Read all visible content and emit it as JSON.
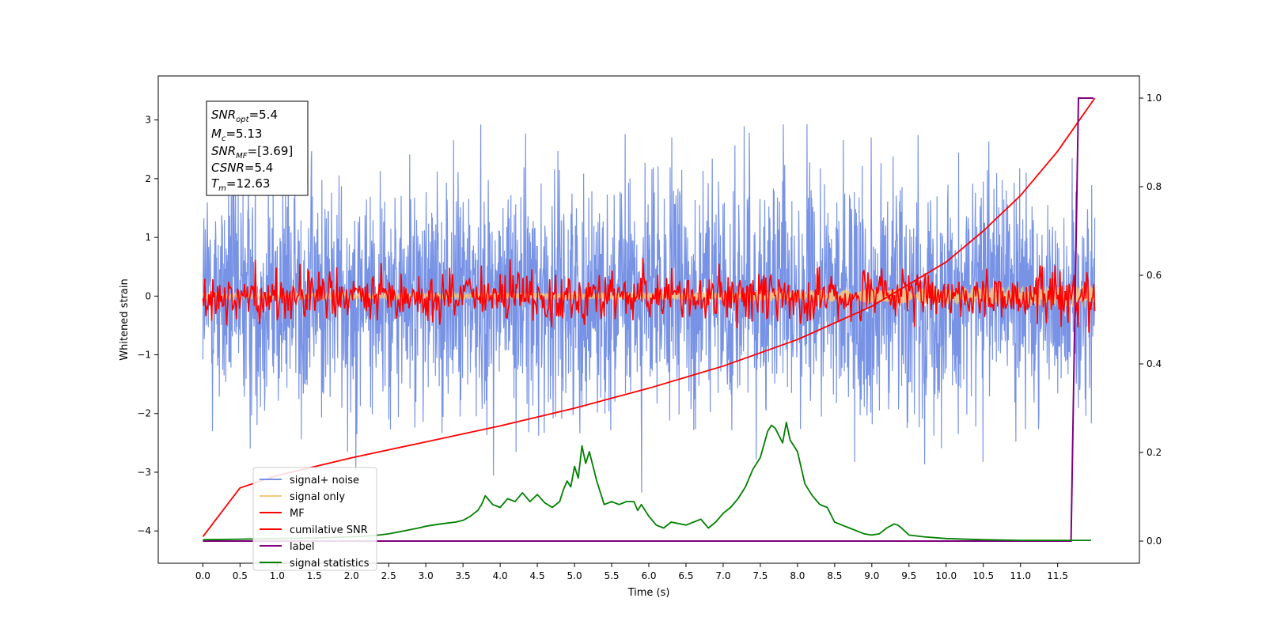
{
  "chart_data": {
    "type": "line",
    "title": "",
    "xlabel": "Time (s)",
    "ylabel": "Whitened strain",
    "y2label": "",
    "xlim": [
      -0.6,
      12.6
    ],
    "ylim": [
      -4.55,
      3.75
    ],
    "y2lim": [
      -0.05,
      1.05
    ],
    "x_ticks": [
      "0.0",
      "0.5",
      "1.0",
      "1.5",
      "2.0",
      "2.5",
      "3.0",
      "3.5",
      "4.0",
      "4.5",
      "5.0",
      "5.5",
      "6.0",
      "6.5",
      "7.0",
      "7.5",
      "8.0",
      "8.5",
      "9.0",
      "9.5",
      "10.0",
      "10.5",
      "11.0",
      "11.5"
    ],
    "y_ticks": [
      "3",
      "2",
      "1",
      "0",
      "−1",
      "−2",
      "−3",
      "−4"
    ],
    "y2_ticks": [
      "1.0",
      "0.8",
      "0.6",
      "0.4",
      "0.2",
      "0.0"
    ],
    "grid": false,
    "legend_position": "lower-left",
    "infobox": {
      "snr_opt": {
        "sym": "SNR",
        "sub": "opt",
        "val": "=5.4"
      },
      "mc": {
        "sym": "M",
        "sub": "c",
        "val": "=5.13"
      },
      "snr_mf": {
        "sym": "SNR",
        "sub": "MF",
        "val": "=[3.69]"
      },
      "csnr": {
        "sym": "CSNR",
        "sub": "",
        "val": "=5.4"
      },
      "tm": {
        "sym": "T",
        "sub": "m",
        "val": "=12.63"
      }
    },
    "series": [
      {
        "name": "signal+ noise",
        "color": "#7893e6",
        "axis": "left",
        "kind": "noise",
        "sigma": 1.0,
        "peak": 3.35,
        "x_range": [
          0.0,
          12.0
        ]
      },
      {
        "name": "signal only",
        "color": "#f5c77a",
        "axis": "left",
        "kind": "chirp",
        "x_range": [
          0.0,
          12.0
        ],
        "amplitude_start": 0.05,
        "amplitude_end": 0.2
      },
      {
        "name": "MF",
        "color": "#ff0000",
        "axis": "left",
        "kind": "noise",
        "sigma": 0.22,
        "peak": 1.0,
        "x_range": [
          0.0,
          12.0
        ]
      },
      {
        "name": "cumilative SNR",
        "color": "#ff0000",
        "axis": "right",
        "x": [
          0.0,
          0.5,
          1.0,
          2.0,
          3.0,
          4.0,
          5.0,
          6.0,
          7.0,
          8.0,
          9.0,
          10.0,
          10.5,
          11.0,
          11.5,
          12.0
        ],
        "y": [
          0.01,
          0.12,
          0.148,
          0.188,
          0.224,
          0.26,
          0.3,
          0.345,
          0.395,
          0.455,
          0.53,
          0.63,
          0.7,
          0.78,
          0.88,
          1.0
        ]
      },
      {
        "name": "label",
        "color": "#800080",
        "axis": "right",
        "x": [
          0.0,
          11.68,
          11.78,
          11.98
        ],
        "y": [
          0.0,
          0.0,
          1.0,
          1.0
        ]
      },
      {
        "name": "signal statistics",
        "color": "#008000",
        "axis": "left",
        "x": [
          0.0,
          0.5,
          1.0,
          1.5,
          2.0,
          2.3,
          2.5,
          2.7,
          2.9,
          3.0,
          3.2,
          3.4,
          3.5,
          3.6,
          3.7,
          3.75,
          3.8,
          3.9,
          4.0,
          4.1,
          4.2,
          4.3,
          4.4,
          4.5,
          4.6,
          4.7,
          4.8,
          4.85,
          4.9,
          4.95,
          5.0,
          5.05,
          5.1,
          5.15,
          5.2,
          5.25,
          5.3,
          5.4,
          5.5,
          5.6,
          5.7,
          5.8,
          5.85,
          5.9,
          6.0,
          6.1,
          6.2,
          6.3,
          6.5,
          6.7,
          6.8,
          6.9,
          7.0,
          7.1,
          7.2,
          7.3,
          7.4,
          7.5,
          7.6,
          7.65,
          7.7,
          7.8,
          7.85,
          7.9,
          8.0,
          8.1,
          8.2,
          8.3,
          8.4,
          8.5,
          8.6,
          8.7,
          8.8,
          8.9,
          9.0,
          9.1,
          9.2,
          9.3,
          9.35,
          9.4,
          9.5,
          9.7,
          10.0,
          10.5,
          11.0,
          11.5,
          11.95
        ],
        "y": [
          -4.15,
          -4.14,
          -4.13,
          -4.12,
          -4.1,
          -4.08,
          -4.05,
          -4.0,
          -3.95,
          -3.92,
          -3.88,
          -3.85,
          -3.82,
          -3.75,
          -3.65,
          -3.55,
          -3.4,
          -3.55,
          -3.6,
          -3.45,
          -3.5,
          -3.35,
          -3.5,
          -3.38,
          -3.52,
          -3.6,
          -3.5,
          -3.3,
          -3.15,
          -3.25,
          -2.9,
          -3.1,
          -2.55,
          -2.85,
          -2.65,
          -2.9,
          -3.15,
          -3.55,
          -3.5,
          -3.55,
          -3.5,
          -3.5,
          -3.65,
          -3.55,
          -3.75,
          -3.9,
          -3.95,
          -3.85,
          -3.9,
          -3.8,
          -3.95,
          -3.85,
          -3.7,
          -3.6,
          -3.45,
          -3.25,
          -2.95,
          -2.75,
          -2.3,
          -2.2,
          -2.25,
          -2.5,
          -2.15,
          -2.45,
          -2.65,
          -3.2,
          -3.4,
          -3.55,
          -3.6,
          -3.85,
          -3.9,
          -3.95,
          -4.0,
          -4.05,
          -4.07,
          -4.05,
          -3.95,
          -3.88,
          -3.9,
          -3.95,
          -4.07,
          -4.1,
          -4.13,
          -4.15,
          -4.16,
          -4.16,
          -4.16
        ]
      }
    ]
  }
}
